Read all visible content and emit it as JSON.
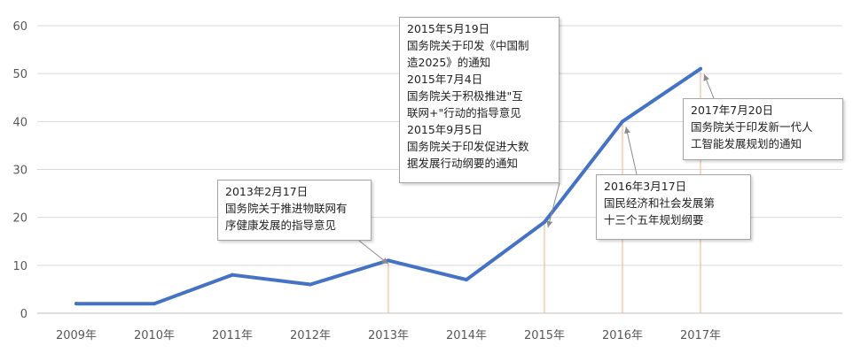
{
  "chart_data": {
    "type": "line",
    "categories": [
      "2009年",
      "2010年",
      "2011年",
      "2012年",
      "2013年",
      "2014年",
      "2015年",
      "2016年",
      "2017年"
    ],
    "values": [
      2,
      2,
      8,
      6,
      11,
      7,
      19,
      40,
      51
    ],
    "yticks": [
      0,
      10,
      20,
      30,
      40,
      50,
      60
    ],
    "ylim": [
      0,
      60
    ],
    "grid": true,
    "line_color": "#4472c4",
    "annotation_color": "#f2b183",
    "annotations": [
      {
        "category": "2013年",
        "text": "2013年2月17日\n国务院关于推进物联网有\n序健康发展的指导意见"
      },
      {
        "category": "2015年",
        "text": "2015年5月19日\n国务院关于印发《中国制\n造2025》的通知\n2015年7月4日\n国务院关于积极推进\"互\n联网+\"行动的指导意见\n2015年9月5日\n国务院关于印发促进大数\n据发展行动纲要的通知"
      },
      {
        "category": "2016年",
        "text": "2016年3月17日\n国民经济和社会发展第\n十三个五年规划纲要"
      },
      {
        "category": "2017年",
        "text": "2017年7月20日\n国务院关于印发新一代人\n工智能发展规划的通知"
      }
    ]
  }
}
